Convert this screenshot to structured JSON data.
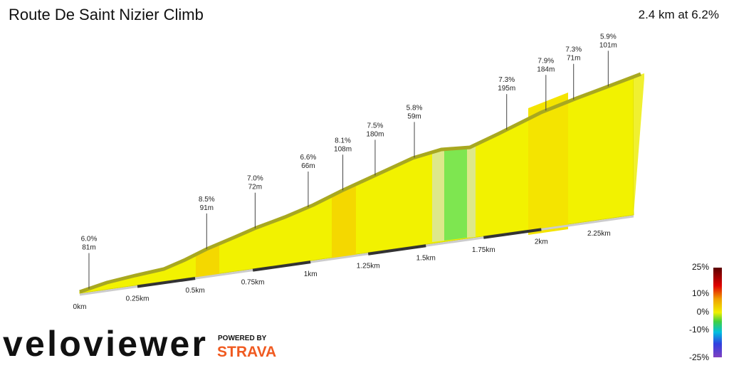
{
  "chart_data": {
    "type": "profile",
    "title": "Route De Saint Nizier Climb",
    "subtitle": "2.4 km at 6.2%",
    "xlim": [
      0,
      2.4
    ],
    "xticks": [
      {
        "value": 0,
        "label": "0km"
      },
      {
        "value": 0.25,
        "label": "0.25km"
      },
      {
        "value": 0.5,
        "label": "0.5km"
      },
      {
        "value": 0.75,
        "label": "0.75km"
      },
      {
        "value": 1,
        "label": "1km"
      },
      {
        "value": 1.25,
        "label": "1.25km"
      },
      {
        "value": 1.5,
        "label": "1.5km"
      },
      {
        "value": 1.75,
        "label": "1.75km"
      },
      {
        "value": 2,
        "label": "2km"
      },
      {
        "value": 2.25,
        "label": "2.25km"
      }
    ],
    "annotations": [
      {
        "x": 0.04,
        "grade": "6.0%",
        "length": "81m"
      },
      {
        "x": 0.55,
        "grade": "8.5%",
        "length": "91m"
      },
      {
        "x": 0.76,
        "grade": "7.0%",
        "length": "72m"
      },
      {
        "x": 0.99,
        "grade": "6.6%",
        "length": "66m"
      },
      {
        "x": 1.14,
        "grade": "8.1%",
        "length": "108m"
      },
      {
        "x": 1.28,
        "grade": "7.5%",
        "length": "180m"
      },
      {
        "x": 1.45,
        "grade": "5.8%",
        "length": "59m"
      },
      {
        "x": 1.85,
        "grade": "7.3%",
        "length": "195m"
      },
      {
        "x": 2.02,
        "grade": "7.9%",
        "length": "184m"
      },
      {
        "x": 2.14,
        "grade": "7.3%",
        "length": "71m"
      },
      {
        "x": 2.29,
        "grade": "5.9%",
        "length": "101m"
      }
    ],
    "legend_labels": [
      "25%",
      "10%",
      "0%",
      "-10%",
      "-25%"
    ],
    "brand": "veloviewer",
    "powered_by": "POWERED BY",
    "partner": "STRAVA"
  }
}
